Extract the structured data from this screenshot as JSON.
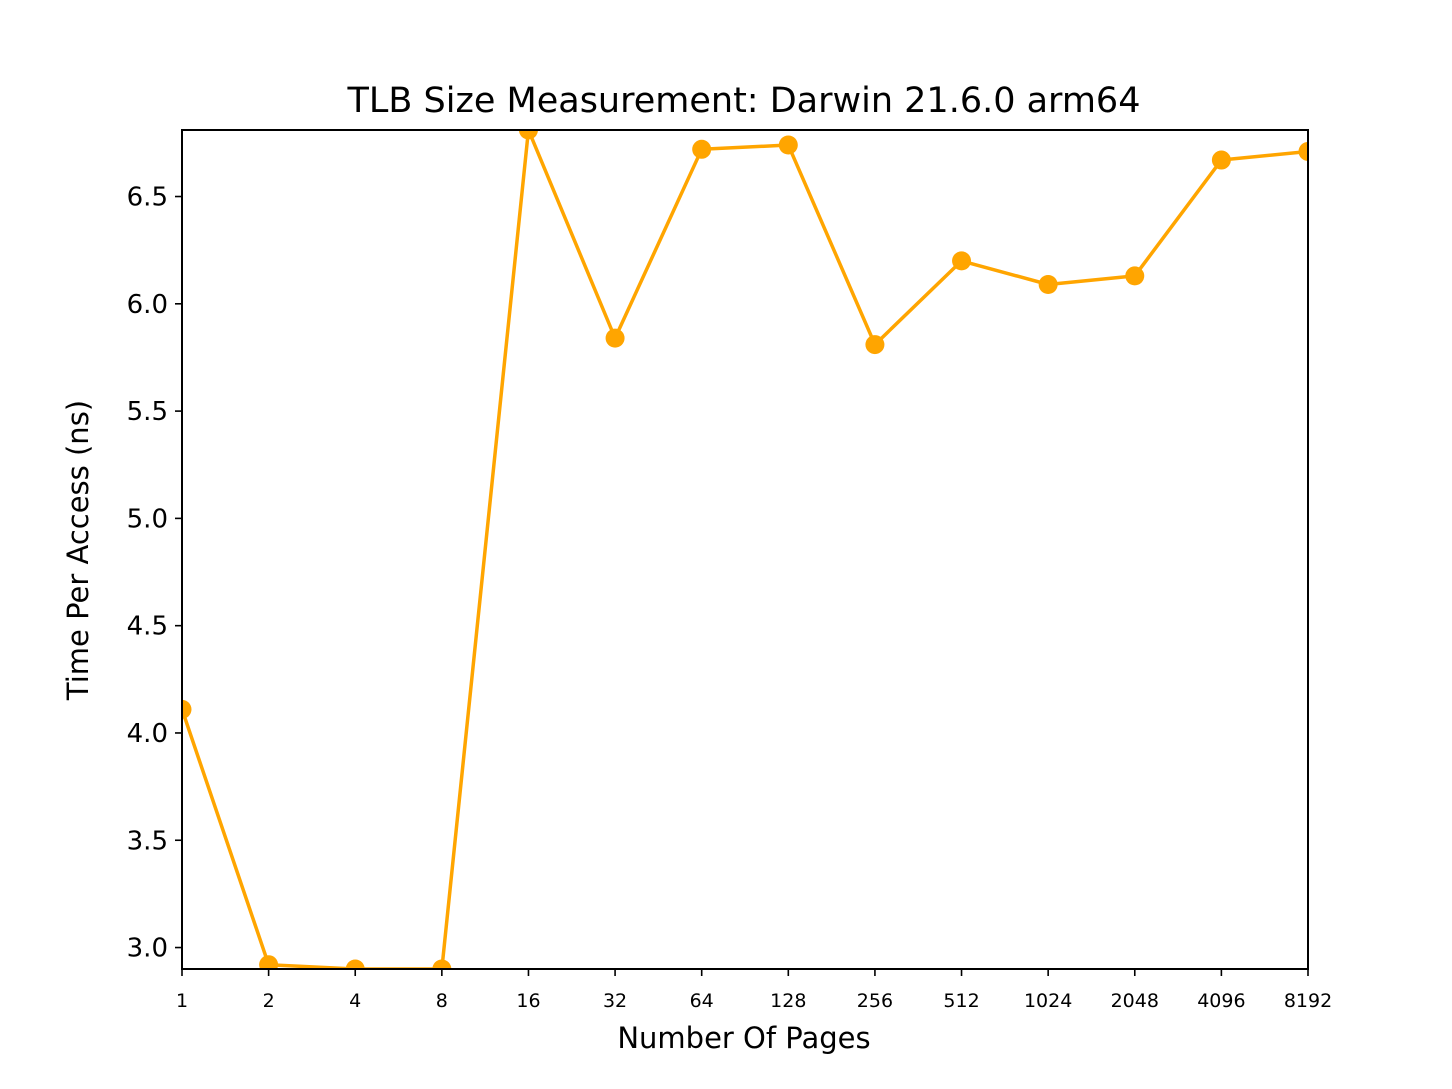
{
  "chart_data": {
    "type": "line",
    "title": "TLB Size Measurement: Darwin 21.6.0 arm64",
    "xlabel": "Number Of Pages",
    "ylabel": "Time Per Access (ns)",
    "x_scale": "log2",
    "x": [
      1,
      2,
      4,
      8,
      16,
      32,
      64,
      128,
      256,
      512,
      1024,
      2048,
      4096,
      8192
    ],
    "x_tick_labels": [
      "1",
      "2",
      "4",
      "8",
      "16",
      "32",
      "64",
      "128",
      "256",
      "512",
      "1024",
      "2048",
      "4096",
      "8192"
    ],
    "y": [
      4.11,
      2.92,
      2.9,
      2.9,
      6.81,
      5.84,
      6.72,
      6.74,
      5.81,
      6.2,
      6.09,
      6.13,
      6.67,
      6.71
    ],
    "ylim": [
      2.9,
      6.81
    ],
    "y_ticks": [
      3.0,
      3.5,
      4.0,
      4.5,
      5.0,
      5.5,
      6.0,
      6.5
    ],
    "y_tick_labels": [
      "3.0",
      "3.5",
      "4.0",
      "4.5",
      "5.0",
      "5.5",
      "6.0",
      "6.5"
    ],
    "grid": false,
    "line_color": "#ffa500",
    "marker": "circle"
  }
}
